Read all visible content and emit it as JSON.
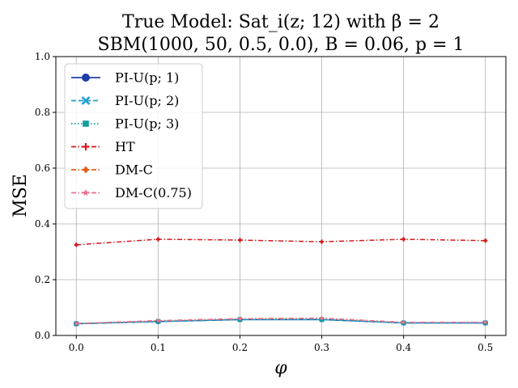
{
  "chart_data": {
    "type": "line",
    "title_line1": "True Model: Sat_i(z; 12) with β = 2",
    "title_line2": "SBM(1000, 50, 0.5, 0.0), B = 0.06, p = 1",
    "xlabel": "φ",
    "ylabel": "MSE",
    "xlim": [
      -0.025,
      0.525
    ],
    "ylim": [
      0.0,
      1.0
    ],
    "xticks": [
      "0.0",
      "0.1",
      "0.2",
      "0.3",
      "0.4",
      "0.5"
    ],
    "xtick_values": [
      0.0,
      0.1,
      0.2,
      0.3,
      0.4,
      0.5
    ],
    "yticks": [
      "0.0",
      "0.2",
      "0.4",
      "0.6",
      "0.8",
      "1.0"
    ],
    "ytick_values": [
      0.0,
      0.2,
      0.4,
      0.6,
      0.8,
      1.0
    ],
    "grid": true,
    "legend_position": "upper-left",
    "x": [
      0.0,
      0.1,
      0.2,
      0.3,
      0.4,
      0.5
    ],
    "series": [
      {
        "name": "PI-U(p; 1)",
        "color": "#1f3fa8",
        "dash": "solid",
        "marker": "circle",
        "values": [
          0.042,
          0.05,
          0.057,
          0.057,
          0.045,
          0.045
        ]
      },
      {
        "name": "PI-U(p; 2)",
        "color": "#1f9fd4",
        "dash": "dashed",
        "marker": "x",
        "values": [
          0.042,
          0.05,
          0.057,
          0.057,
          0.045,
          0.045
        ]
      },
      {
        "name": "PI-U(p; 3)",
        "color": "#129e9e",
        "dash": "dotted",
        "marker": "square",
        "values": [
          0.042,
          0.05,
          0.057,
          0.057,
          0.045,
          0.045
        ]
      },
      {
        "name": "HT",
        "color": "#d7191c",
        "dash": "dashdot",
        "marker": "plus",
        "values": [
          0.325,
          0.345,
          0.342,
          0.336,
          0.345,
          0.34
        ]
      },
      {
        "name": "DM-C",
        "color": "#e0611a",
        "dash": "dashdot",
        "marker": "diamond",
        "values": [
          0.043,
          0.053,
          0.06,
          0.062,
          0.047,
          0.047
        ]
      },
      {
        "name": "DM-C(0.75)",
        "color": "#f07090",
        "dash": "dashdot",
        "marker": "star",
        "values": [
          0.043,
          0.053,
          0.06,
          0.062,
          0.047,
          0.047
        ]
      }
    ]
  }
}
